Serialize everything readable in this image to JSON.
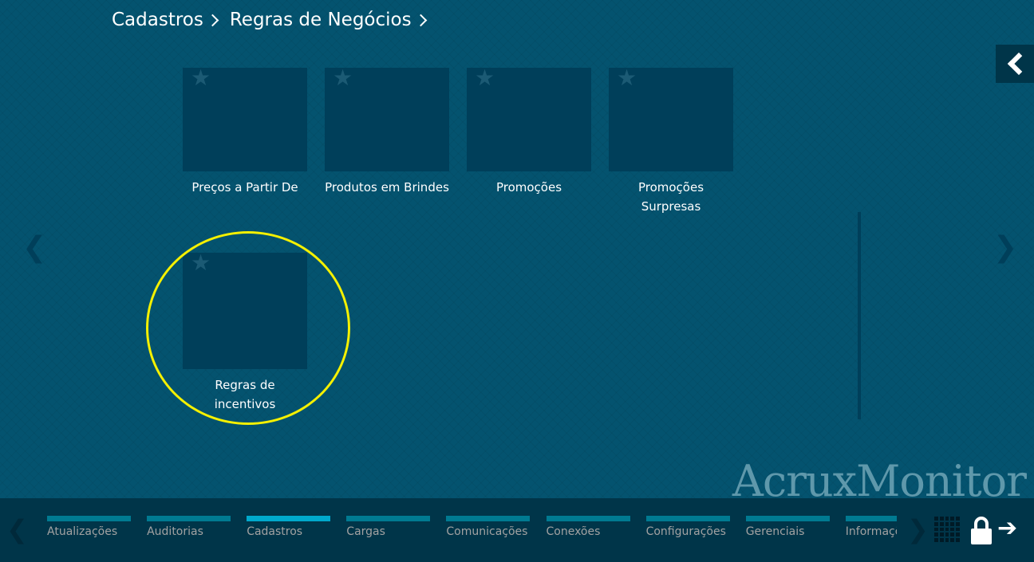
{
  "breadcrumb": [
    "Cadastros",
    "Regras de Negócios"
  ],
  "tiles": [
    {
      "label": "Preços a Partir De",
      "favorite_icon": "star-icon"
    },
    {
      "label": "Produtos em Brindes",
      "favorite_icon": "star-icon"
    },
    {
      "label": "Promoções",
      "favorite_icon": "star-icon"
    },
    {
      "label": "Promoções Surpresas",
      "favorite_icon": "star-icon"
    },
    {
      "label": "Regras de incentivos",
      "favorite_icon": "star-icon",
      "highlighted": true
    }
  ],
  "logo": "AcruxMonitor",
  "bottom_nav": {
    "active": "Cadastros",
    "items": [
      "Atualizações",
      "Auditorias",
      "Cadastros",
      "Cargas",
      "Comunicações",
      "Conexões",
      "Configurações",
      "Gerenciais",
      "Informações"
    ]
  },
  "colors": {
    "background": "#04536f",
    "tile": "#003f5a",
    "bottom_bar": "#003549",
    "nav_bar": "#007a91",
    "nav_active": "#00a9cc",
    "highlight": "#f5f000"
  }
}
